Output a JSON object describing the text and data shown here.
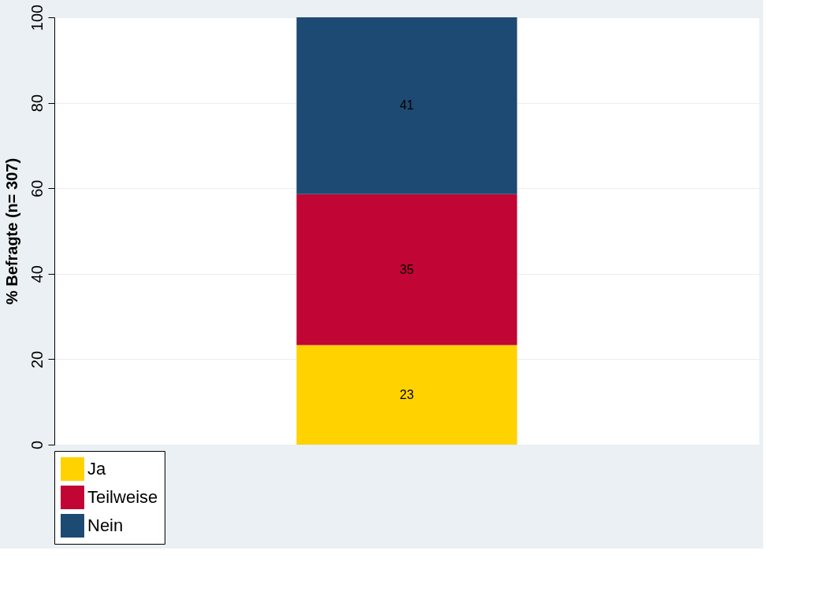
{
  "chart_data": {
    "type": "bar",
    "stacked": true,
    "categories": [
      null
    ],
    "ylabel": "% Befragte (n= 307)",
    "series": [
      {
        "name": "Ja",
        "color": "#ffd200",
        "values": [
          23.3
        ],
        "value_labels": [
          "23"
        ]
      },
      {
        "name": "Teilweise",
        "color": "#c10534",
        "values": [
          35.3
        ],
        "value_labels": [
          "35"
        ]
      },
      {
        "name": "Nein",
        "color": "#1d4a72",
        "values": [
          41.4
        ],
        "value_labels": [
          "41"
        ]
      }
    ],
    "ylim": [
      0,
      100
    ],
    "yticks": [
      0,
      20,
      40,
      60,
      80,
      100
    ],
    "grid": "y",
    "legend": "bottom",
    "tick_labels": "y"
  }
}
